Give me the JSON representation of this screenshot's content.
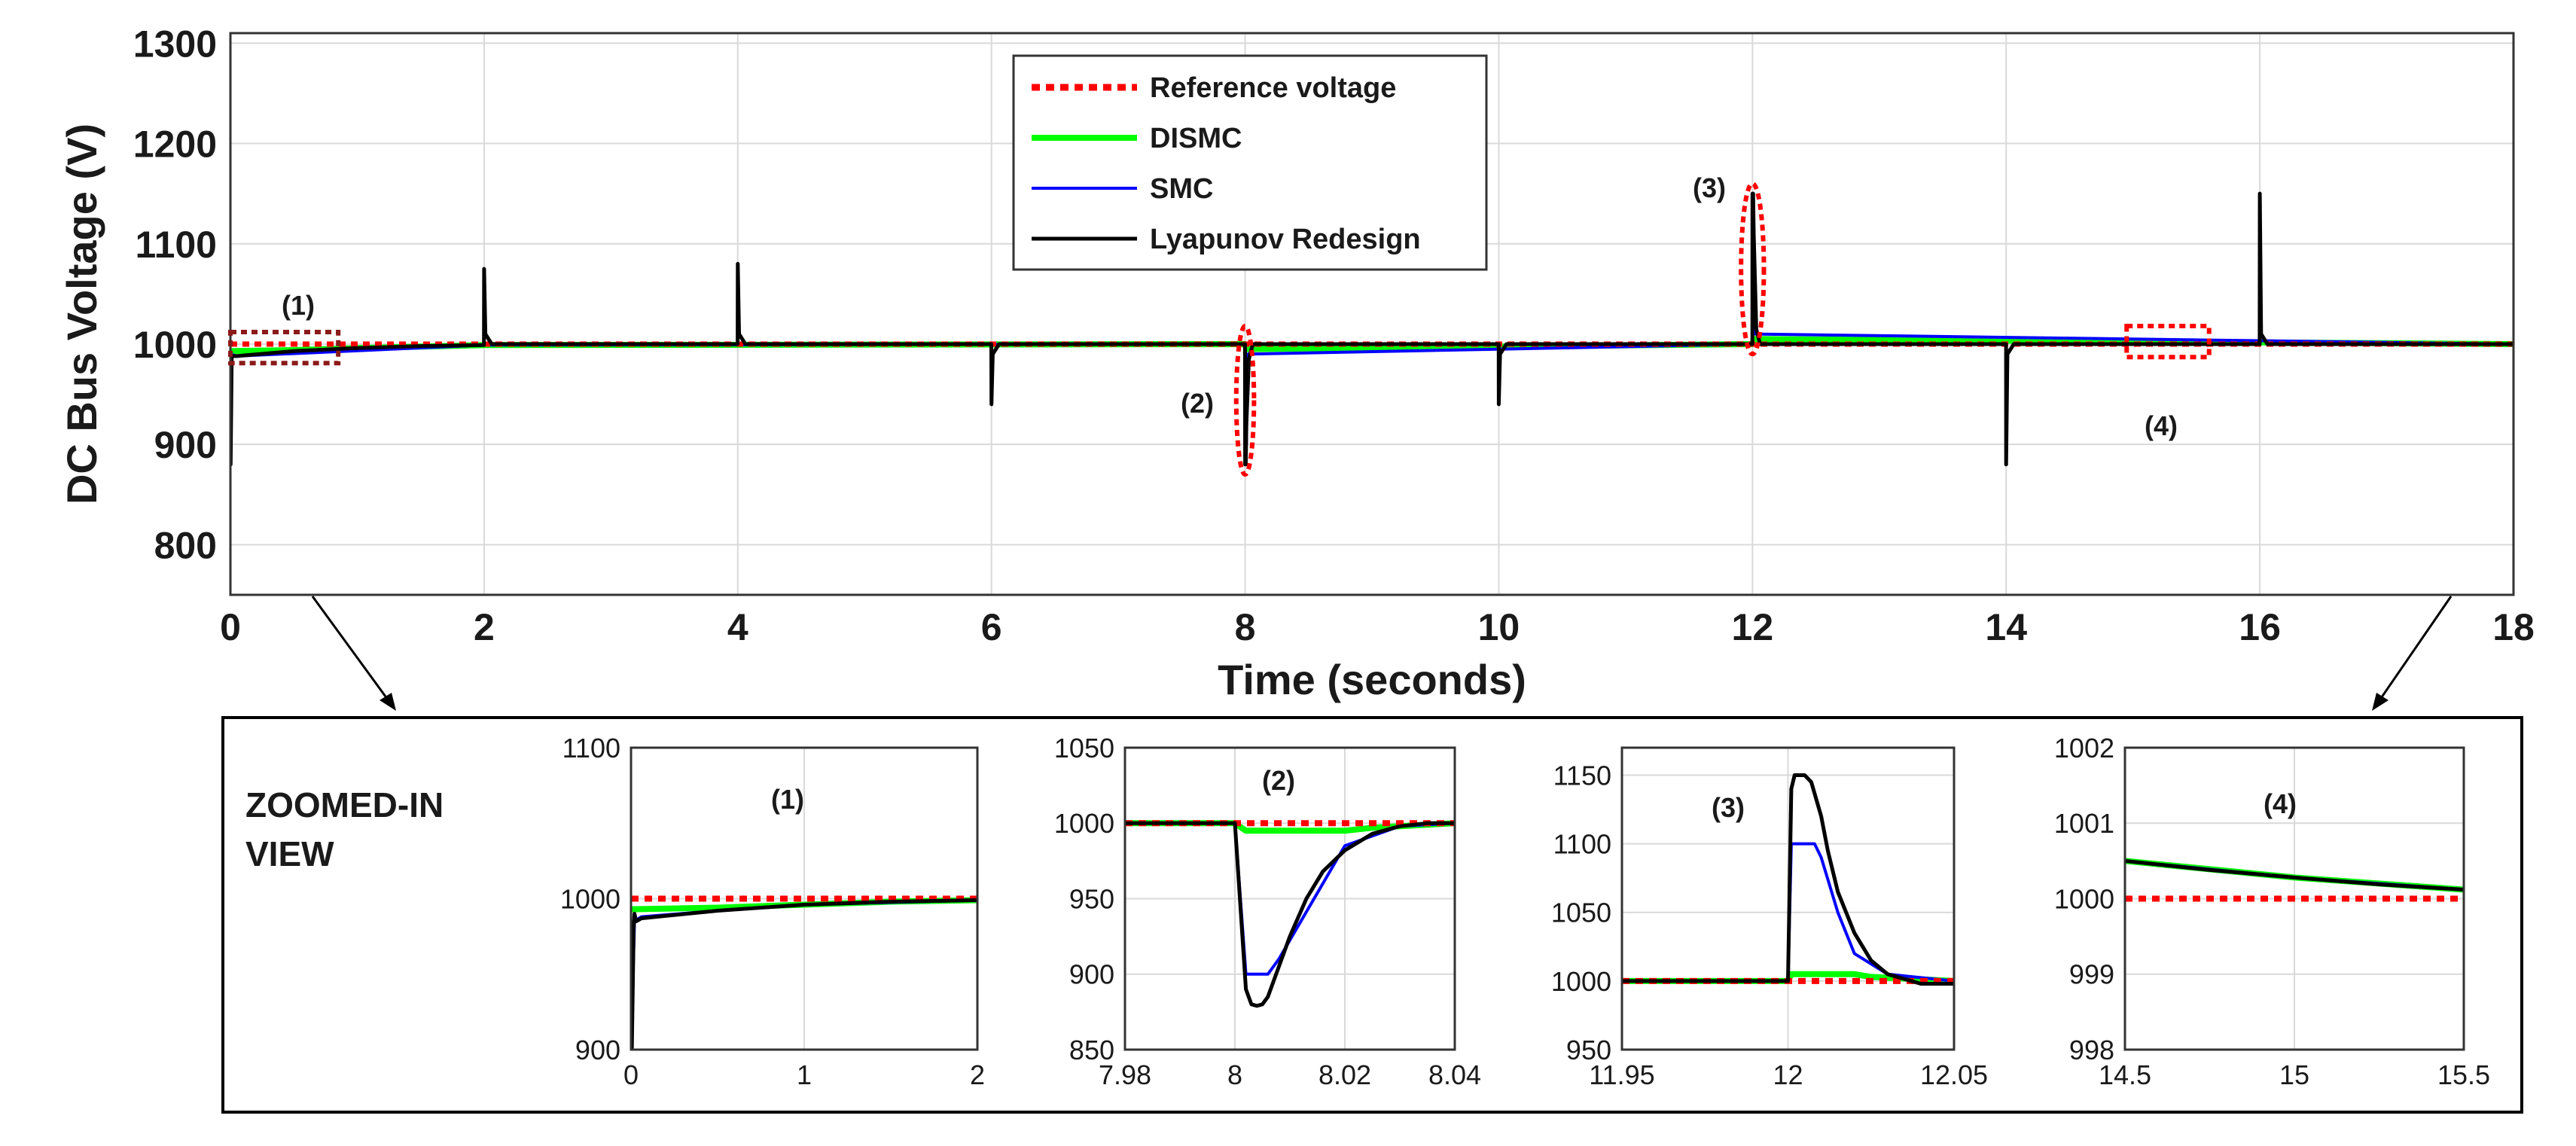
{
  "colors": {
    "reference": "#ff0000",
    "dismc": "#00ff00",
    "smc": "#0000ff",
    "lyapunov": "#000000",
    "grid": "#d9d9d9",
    "annotation_box": "#8b1a1a"
  },
  "chart_data": [
    {
      "id": "main",
      "type": "line",
      "title": "",
      "xlabel": "Time (seconds)",
      "ylabel": "DC Bus Voltage (V)",
      "xlim": [
        0,
        18
      ],
      "ylim": [
        750,
        1310
      ],
      "xticks": [
        0,
        2,
        4,
        6,
        8,
        10,
        12,
        14,
        16,
        18
      ],
      "yticks": [
        800,
        900,
        1000,
        1100,
        1200,
        1300
      ],
      "grid": true,
      "legend": {
        "position": "top-center",
        "entries": [
          {
            "label": "Reference voltage",
            "series": "reference"
          },
          {
            "label": "DISMC",
            "series": "dismc"
          },
          {
            "label": "SMC",
            "series": "smc"
          },
          {
            "label": "Lyapunov Redesign",
            "series": "lyapunov"
          }
        ]
      },
      "series": [
        {
          "name": "Reference voltage",
          "key": "reference",
          "style": "dotted",
          "x": [
            0,
            18
          ],
          "y": [
            1000,
            1000
          ]
        },
        {
          "name": "DISMC",
          "key": "dismc",
          "style": "solid",
          "x": [
            0,
            0.02,
            0.5,
            1,
            2,
            8,
            8.01,
            12,
            12.01,
            18
          ],
          "y": [
            993,
            993,
            994,
            996,
            999,
            1000,
            995,
            1000,
            1005,
            1000
          ]
        },
        {
          "name": "SMC",
          "key": "smc",
          "style": "solid",
          "x": [
            0,
            0.05,
            2,
            8,
            8.01,
            8.02,
            12,
            12.01,
            12.02,
            18
          ],
          "y": [
            990,
            988,
            999,
            1000,
            900,
            990,
            1000,
            1100,
            1010,
            1000
          ]
        },
        {
          "name": "Lyapunov Redesign",
          "key": "lyapunov",
          "style": "solid",
          "x": [
            0,
            0.002,
            0.01,
            0.05,
            0.5,
            1,
            1.5,
            1.999,
            2.0,
            2.01,
            2.06,
            3,
            3.999,
            4.0,
            4.01,
            4.06,
            5.999,
            6.0,
            6.01,
            6.06,
            7.999,
            8.0,
            8.005,
            8.01,
            8.03,
            8.06,
            9.999,
            10.0,
            10.01,
            10.06,
            11.999,
            12.0,
            12.005,
            12.01,
            12.03,
            12.06,
            13.999,
            14.0,
            14.01,
            14.06,
            15.999,
            16.0,
            16.01,
            16.06,
            18
          ],
          "y": [
            880,
            880,
            988,
            988,
            993,
            996,
            998,
            999,
            1075,
            1010,
            1000,
            1000,
            1000,
            1080,
            1010,
            1000,
            1000,
            940,
            990,
            1000,
            1000,
            880,
            880,
            920,
            985,
            1000,
            1000,
            940,
            990,
            1000,
            1000,
            1150,
            1150,
            1110,
            1015,
            1000,
            1000,
            880,
            990,
            1000,
            1000,
            1150,
            1010,
            1000,
            1000
          ]
        }
      ],
      "annotations": [
        {
          "label": "(1)",
          "shape": "rect",
          "x": [
            0,
            0.85
          ],
          "y": [
            981,
            1012
          ]
        },
        {
          "label": "(2)",
          "shape": "ellipse",
          "x": [
            7.93,
            8.07
          ],
          "y": [
            870,
            1018
          ]
        },
        {
          "label": "(3)",
          "shape": "ellipse",
          "x": [
            11.91,
            12.09
          ],
          "y": [
            990,
            1160
          ]
        },
        {
          "label": "(4)",
          "shape": "rect",
          "x": [
            14.95,
            15.6
          ],
          "y": [
            987,
            1018
          ]
        }
      ]
    },
    {
      "id": "zoom1",
      "type": "line",
      "title": "(1)",
      "xlim": [
        0,
        2
      ],
      "ylim": [
        900,
        1100
      ],
      "xticks": [
        0,
        1,
        2
      ],
      "xtick_labels": [
        "0",
        "1",
        "2"
      ],
      "yticks": [
        900,
        1000,
        1100
      ],
      "ytick_labels": [
        "900",
        "1000",
        "1100"
      ],
      "grid": true,
      "series": [
        {
          "key": "reference",
          "x": [
            0,
            2
          ],
          "y": [
            1000,
            1000
          ]
        },
        {
          "key": "dismc",
          "x": [
            0,
            0.02,
            0.5,
            1,
            1.5,
            2
          ],
          "y": [
            993,
            993,
            994,
            996,
            998,
            999
          ]
        },
        {
          "key": "smc",
          "x": [
            0,
            0.02,
            0.06,
            0.5,
            1,
            2
          ],
          "y": [
            900,
            985,
            988,
            992,
            996,
            999
          ]
        },
        {
          "key": "lyapunov",
          "x": [
            0,
            0.005,
            0.015,
            0.02,
            0.03,
            0.06,
            0.5,
            1,
            1.5,
            2
          ],
          "y": [
            900,
            900,
            980,
            990,
            985,
            987,
            992,
            996,
            998,
            999
          ]
        }
      ]
    },
    {
      "id": "zoom2",
      "type": "line",
      "title": "(2)",
      "xlim": [
        7.98,
        8.04
      ],
      "ylim": [
        850,
        1050
      ],
      "xticks": [
        7.98,
        8,
        8.02,
        8.04
      ],
      "xtick_labels": [
        "7.98",
        "8",
        "8.02",
        "8.04"
      ],
      "yticks": [
        850,
        900,
        950,
        1000,
        1050
      ],
      "ytick_labels": [
        "850",
        "900",
        "950",
        "1000",
        "1050"
      ],
      "grid": true,
      "series": [
        {
          "key": "reference",
          "x": [
            7.98,
            8.04
          ],
          "y": [
            1000,
            1000
          ]
        },
        {
          "key": "dismc",
          "x": [
            7.98,
            8.0,
            8.002,
            8.02,
            8.025,
            8.04
          ],
          "y": [
            1000,
            1000,
            995,
            995,
            997,
            1000
          ]
        },
        {
          "key": "smc",
          "x": [
            7.98,
            8.0,
            8.002,
            8.006,
            8.008,
            8.02,
            8.03,
            8.04
          ],
          "y": [
            1000,
            1000,
            900,
            900,
            910,
            985,
            998,
            1000
          ]
        },
        {
          "key": "lyapunov",
          "x": [
            7.98,
            8.0,
            8.002,
            8.003,
            8.004,
            8.005,
            8.006,
            8.008,
            8.01,
            8.013,
            8.016,
            8.02,
            8.025,
            8.03,
            8.035,
            8.04
          ],
          "y": [
            1000,
            1000,
            890,
            880,
            879,
            880,
            885,
            905,
            925,
            950,
            968,
            982,
            993,
            998,
            1000,
            1000
          ]
        }
      ]
    },
    {
      "id": "zoom3",
      "type": "line",
      "title": "(3)",
      "xlim": [
        11.95,
        12.05
      ],
      "ylim": [
        950,
        1170
      ],
      "xticks": [
        11.95,
        12,
        12.05
      ],
      "xtick_labels": [
        "11.95",
        "12",
        "12.05"
      ],
      "yticks": [
        950,
        1000,
        1050,
        1100,
        1150
      ],
      "ytick_labels": [
        "950",
        "1000",
        "1050",
        "1100",
        "1150"
      ],
      "grid": true,
      "series": [
        {
          "key": "reference",
          "x": [
            11.95,
            12.05
          ],
          "y": [
            1000,
            1000
          ]
        },
        {
          "key": "dismc",
          "x": [
            11.95,
            12.0,
            12.001,
            12.02,
            12.025,
            12.05
          ],
          "y": [
            1000,
            1000,
            1005,
            1005,
            1003,
            1000
          ]
        },
        {
          "key": "smc",
          "x": [
            11.95,
            12.0,
            12.001,
            12.008,
            12.01,
            12.015,
            12.02,
            12.03,
            12.05
          ],
          "y": [
            1000,
            1000,
            1100,
            1100,
            1090,
            1050,
            1020,
            1005,
            1000
          ]
        },
        {
          "key": "lyapunov",
          "x": [
            11.95,
            12.0,
            12.001,
            12.002,
            12.005,
            12.007,
            12.01,
            12.012,
            12.015,
            12.02,
            12.025,
            12.03,
            12.04,
            12.05
          ],
          "y": [
            1000,
            1000,
            1140,
            1150,
            1150,
            1145,
            1120,
            1095,
            1065,
            1035,
            1015,
            1005,
            998,
            998
          ]
        }
      ]
    },
    {
      "id": "zoom4",
      "type": "line",
      "title": "(4)",
      "xlim": [
        14.5,
        15.5
      ],
      "ylim": [
        998,
        1002
      ],
      "xticks": [
        14.5,
        15,
        15.5
      ],
      "xtick_labels": [
        "14.5",
        "15",
        "15.5"
      ],
      "yticks": [
        998,
        999,
        1000,
        1001,
        1002
      ],
      "ytick_labels": [
        "998",
        "999",
        "1000",
        "1001",
        "1002"
      ],
      "grid": true,
      "series": [
        {
          "key": "reference",
          "x": [
            14.5,
            15.5
          ],
          "y": [
            1000,
            1000
          ]
        },
        {
          "key": "dismc",
          "x": [
            14.5,
            15.0,
            15.5
          ],
          "y": [
            1000.5,
            1000.28,
            1000.12
          ]
        },
        {
          "key": "smc",
          "x": [
            14.5,
            15.0,
            15.5
          ],
          "y": [
            1000.5,
            1000.28,
            1000.12
          ]
        },
        {
          "key": "lyapunov",
          "x": [
            14.5,
            14.75,
            15.0,
            15.25,
            15.5
          ],
          "y": [
            1000.5,
            1000.38,
            1000.28,
            1000.19,
            1000.12
          ]
        }
      ]
    }
  ],
  "zoom_panel": {
    "title_line1": "ZOOMED-IN",
    "title_line2": "VIEW"
  }
}
